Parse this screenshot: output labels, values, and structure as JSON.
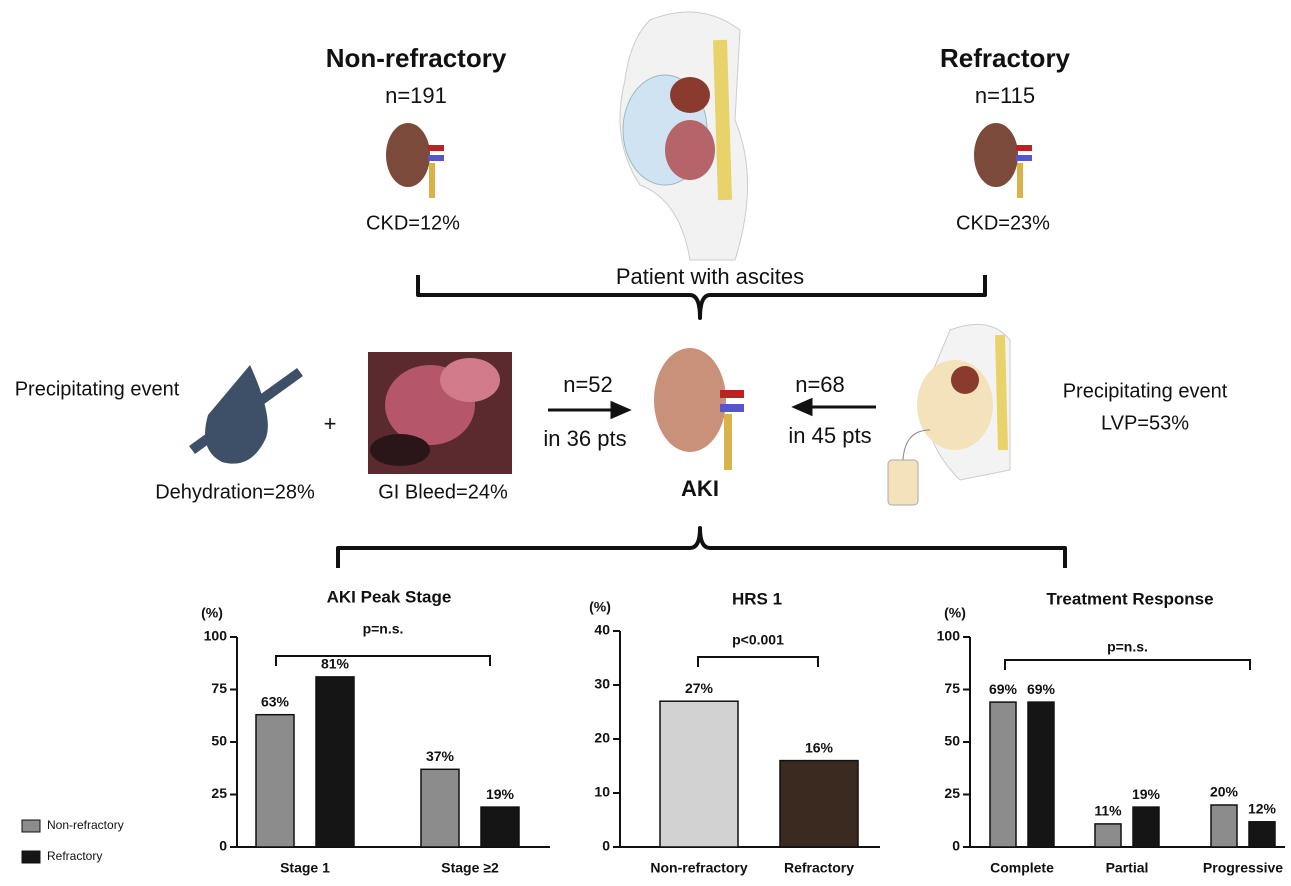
{
  "diagram": {
    "groups": [
      {
        "title": "Non-refractory",
        "n": "n=191",
        "ckd": "CKD=12%"
      },
      {
        "title": "Refractory",
        "n": "n=115",
        "ckd": "CKD=23%"
      }
    ],
    "center_label": "Patient with ascites",
    "left_event": {
      "label": "Precipitating event",
      "plus": "+",
      "dehydration": "Dehydration=28%",
      "gi_bleed": "GI Bleed=24%"
    },
    "arrows": [
      {
        "n": "n=52",
        "pts": "in 36 pts"
      },
      {
        "n": "n=68",
        "pts": "in 45 pts"
      }
    ],
    "aki": "AKI",
    "right_event": {
      "label": "Precipitating event",
      "lvp": "LVP=53%"
    }
  },
  "chart_data": [
    {
      "type": "bar",
      "title": "AKI Peak Stage",
      "y_label": "(%)",
      "annotation": "p=n.s.",
      "categories": [
        "Stage 1",
        "Stage ≥2"
      ],
      "series": [
        {
          "name": "Non-refractory",
          "color": "#8c8c8c",
          "values": [
            63,
            37
          ],
          "value_labels": [
            "63%",
            "37%"
          ]
        },
        {
          "name": "Refractory",
          "color": "#151515",
          "values": [
            81,
            19
          ],
          "value_labels": [
            "81%",
            "19%"
          ]
        }
      ],
      "ylim": [
        0,
        100
      ],
      "yticks": [
        0,
        25,
        50,
        75,
        100
      ]
    },
    {
      "type": "bar",
      "title": "HRS 1",
      "y_label": "(%)",
      "annotation": "p<0.001",
      "categories": [
        "Non-refractory",
        "Refractory"
      ],
      "values": [
        27,
        16
      ],
      "value_labels": [
        "27%",
        "16%"
      ],
      "colors": [
        "#d2d2d2",
        "#3b2a20"
      ],
      "ylim": [
        0,
        40
      ],
      "yticks": [
        0,
        10,
        20,
        30,
        40
      ]
    },
    {
      "type": "bar",
      "title": "Treatment Response",
      "y_label": "(%)",
      "annotation": "p=n.s.",
      "categories": [
        "Complete",
        "Partial",
        "Progressive"
      ],
      "series": [
        {
          "name": "Non-refractory",
          "color": "#8c8c8c",
          "values": [
            69,
            11,
            20
          ],
          "value_labels": [
            "69%",
            "11%",
            "20%"
          ]
        },
        {
          "name": "Refractory",
          "color": "#151515",
          "values": [
            69,
            19,
            12
          ],
          "value_labels": [
            "69%",
            "19%",
            "12%"
          ]
        }
      ],
      "ylim": [
        0,
        100
      ],
      "yticks": [
        0,
        25,
        50,
        75,
        100
      ]
    }
  ]
}
